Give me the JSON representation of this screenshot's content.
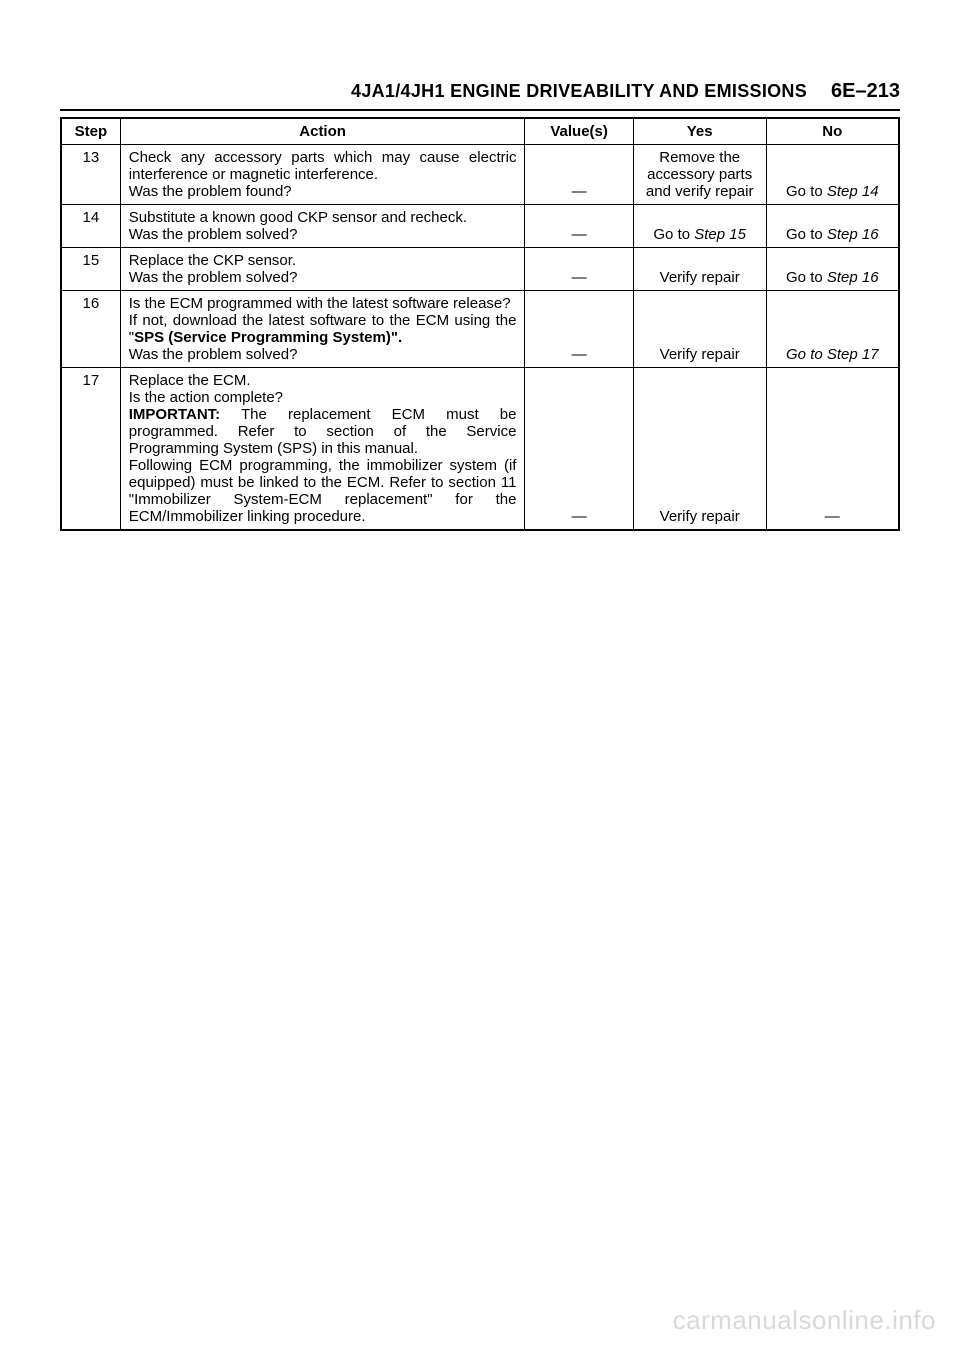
{
  "header": {
    "title": "4JA1/4JH1 ENGINE DRIVEABILITY AND EMISSIONS",
    "page_number": "6E–213"
  },
  "table": {
    "columns": [
      "Step",
      "Action",
      "Value(s)",
      "Yes",
      "No"
    ],
    "rows": [
      {
        "step": "13",
        "action_lines": [
          "Check any accessory parts which may cause electric interference or magnetic interference.",
          "Was the problem found?"
        ],
        "values": "—",
        "yes": "Remove the accessory parts and verify repair",
        "no_prefix": "Go to ",
        "no_step": "Step 14"
      },
      {
        "step": "14",
        "action_lines": [
          "Substitute a known good CKP sensor and recheck.",
          "Was the problem solved?"
        ],
        "values": "—",
        "yes_prefix": "Go to ",
        "yes_step": "Step 15",
        "no_prefix": "Go to ",
        "no_step": "Step 16"
      },
      {
        "step": "15",
        "action_lines": [
          "Replace the CKP sensor.",
          "Was the problem solved?"
        ],
        "values": "—",
        "yes": "Verify repair",
        "no_prefix": "Go to ",
        "no_step": "Step 16"
      },
      {
        "step": "16",
        "action_lines": [
          "Is the ECM programmed with the latest software release?",
          "If not, download the latest software to the ECM using the \"",
          "SPS (Service Programming System)\".",
          "Was the problem solved?"
        ],
        "values": "—",
        "yes": "Verify repair",
        "no_full_italic": "Go to Step 17"
      },
      {
        "step": "17",
        "action_lines": [
          "Replace the ECM.",
          "Is the action complete?",
          "IMPORTANT:",
          " The replacement ECM must be programmed. Refer to section of the Service Programming System (SPS) in this manual.",
          "Following ECM programming, the immobilizer system (if equipped) must be linked to the ECM. Refer to section 11 \"Immobilizer System-ECM replacement\" for the ECM/Immobilizer linking procedure."
        ],
        "values": "—",
        "yes": "Verify repair",
        "no_plain": "—"
      }
    ]
  },
  "watermark": "carmanualsonline.info",
  "colors": {
    "background": "#ffffff",
    "text": "#000000",
    "border": "#000000",
    "watermark": "#d9d9d9"
  }
}
